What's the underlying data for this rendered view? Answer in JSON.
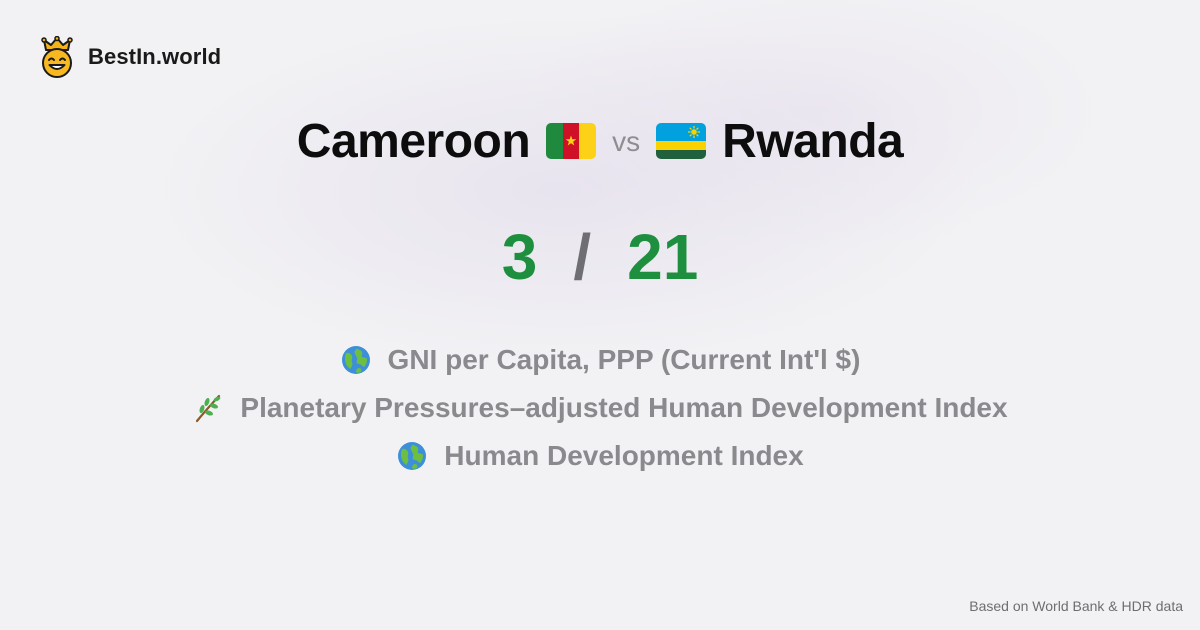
{
  "brand": {
    "name": "BestIn.world",
    "logo_icon": "crowned-smiley-icon"
  },
  "comparison": {
    "left_country": "Cameroon",
    "left_flag_icon": "cameroon-flag-icon",
    "vs_label": "vs",
    "right_country": "Rwanda",
    "right_flag_icon": "rwanda-flag-icon"
  },
  "score": {
    "left": "3",
    "separator": "/",
    "right": "21"
  },
  "metrics": [
    {
      "icon": "globe-icon",
      "label": "GNI per Capita, PPP (Current Int'l $)"
    },
    {
      "icon": "herb-icon",
      "label": "Planetary Pressures–adjusted Human Development Index"
    },
    {
      "icon": "globe-icon",
      "label": "Human Development Index"
    }
  ],
  "footer": {
    "source_text": "Based on World Bank & HDR data"
  },
  "colors": {
    "score_green": "#1e8f3e",
    "muted_text": "#8a8a8e",
    "background": "#f2f2f4"
  }
}
